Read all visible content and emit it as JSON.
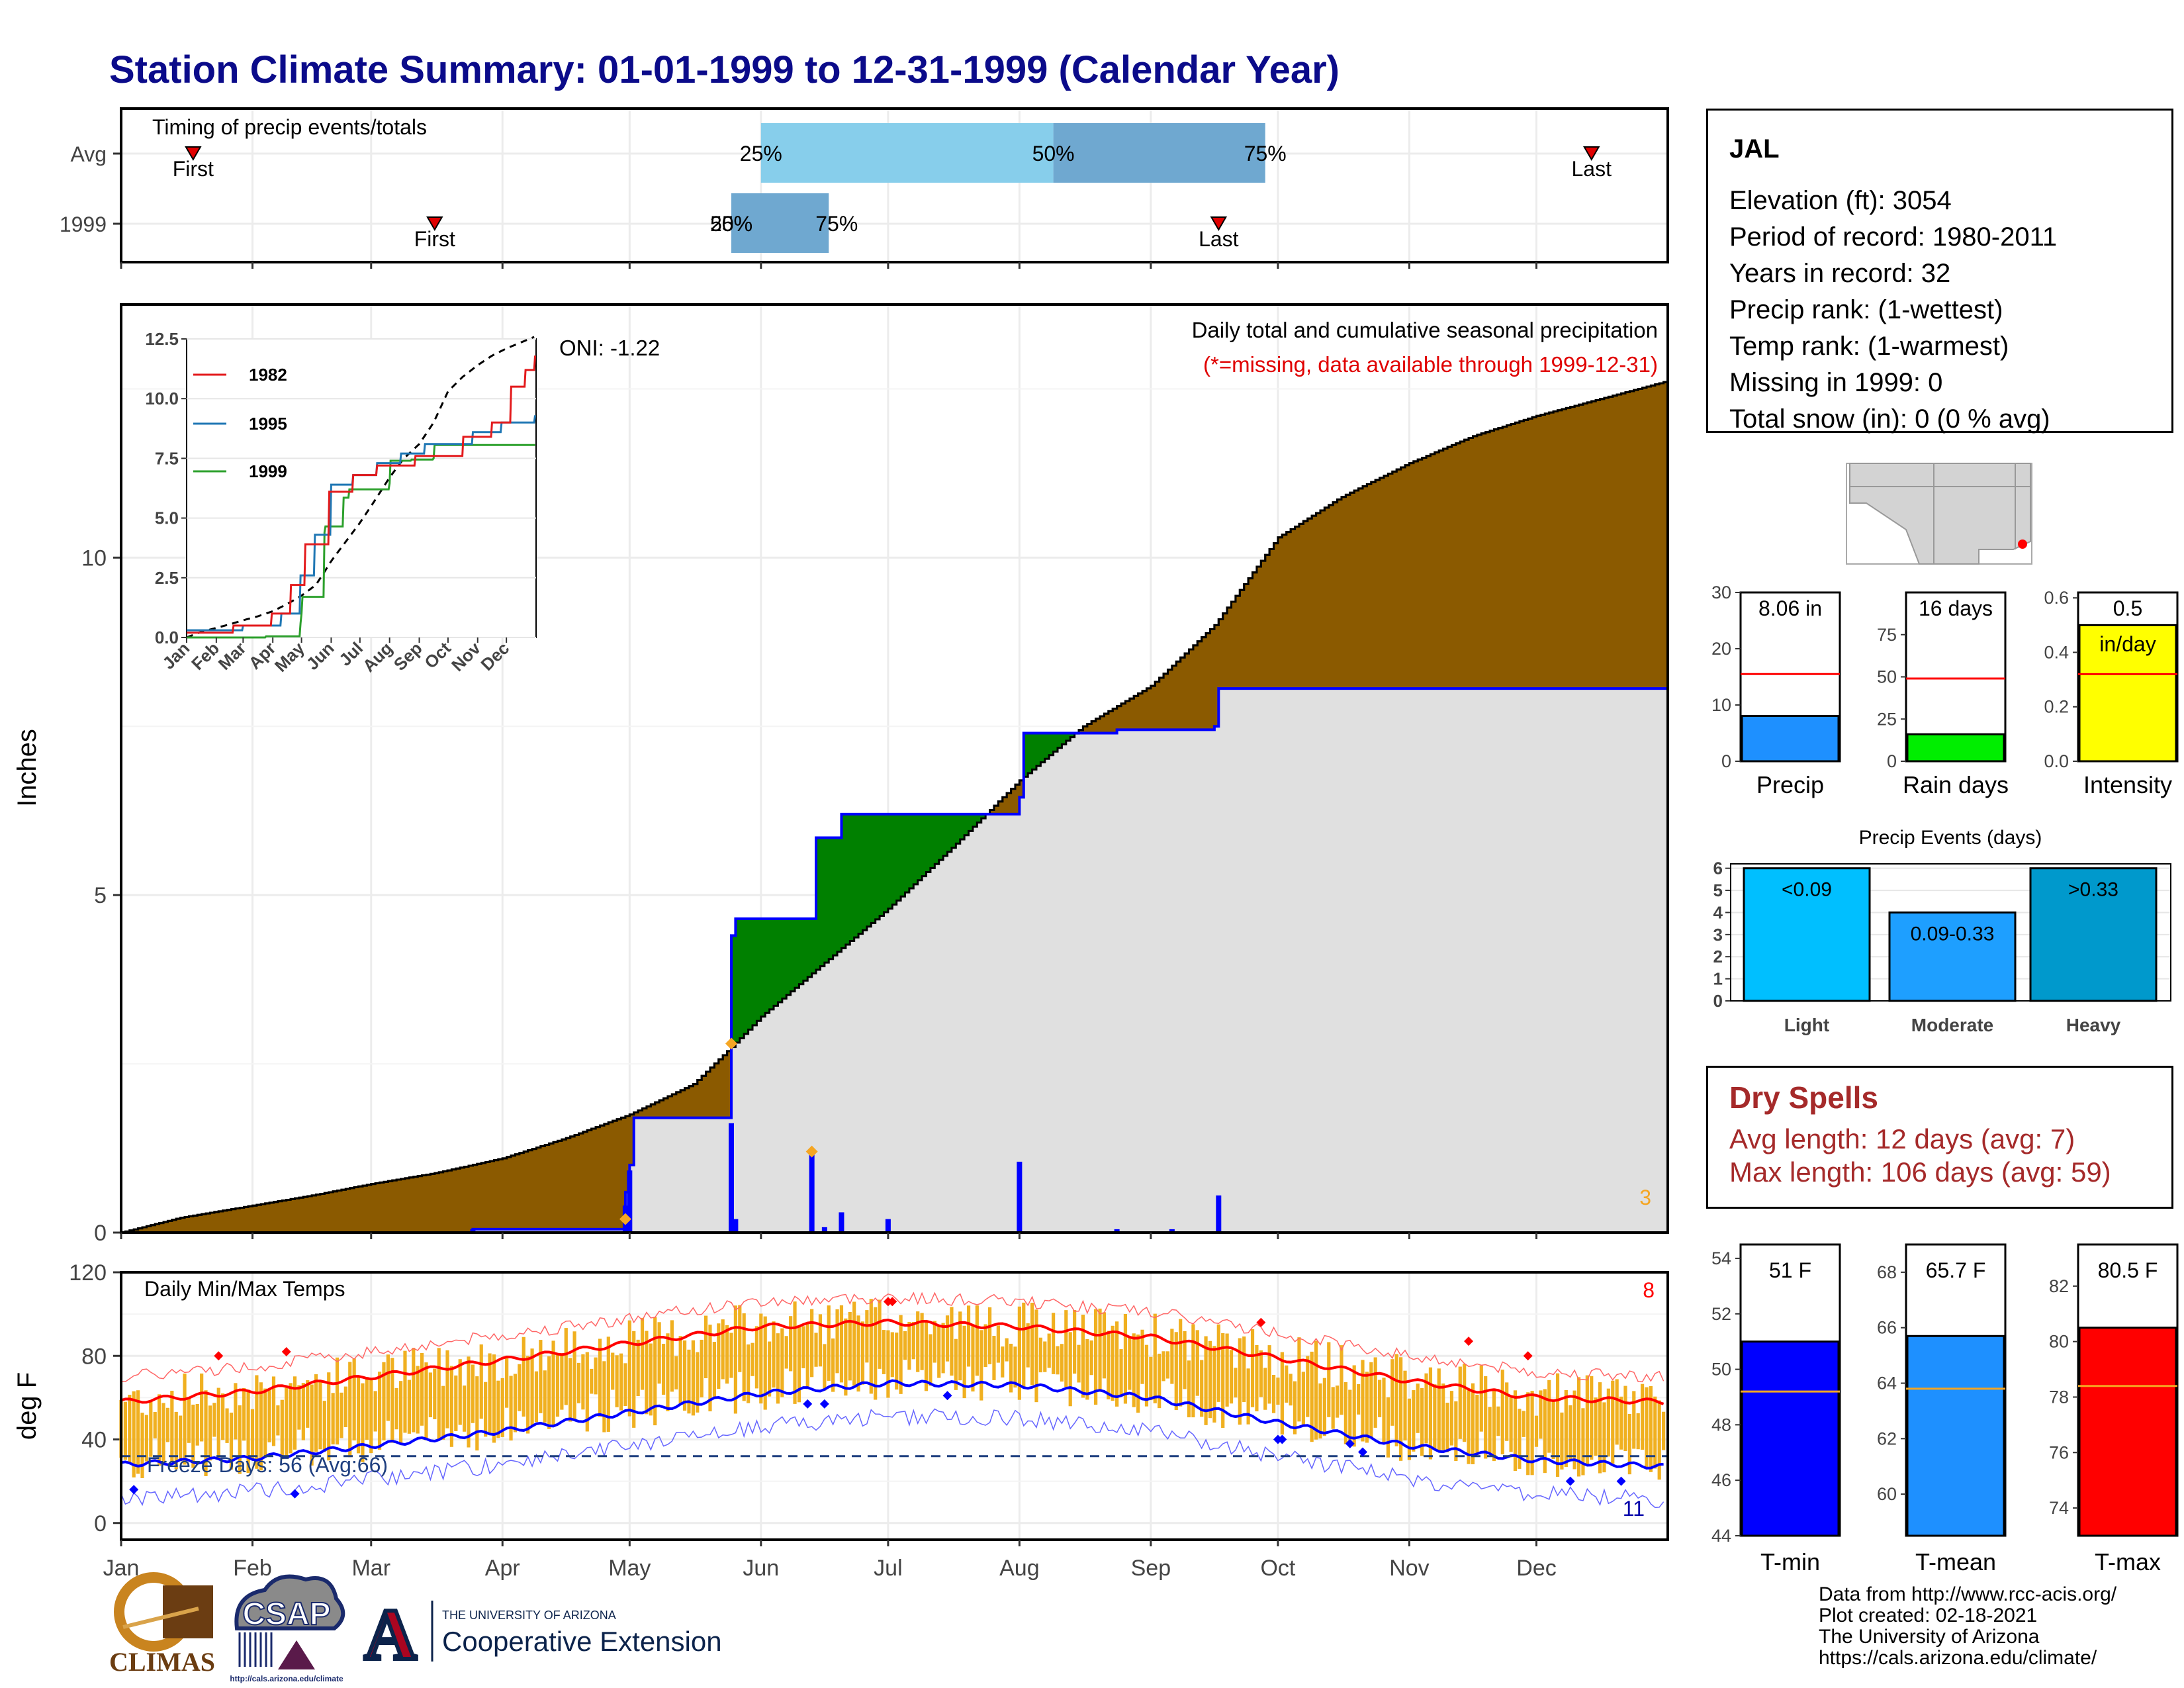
{
  "title": "Station Climate Summary: 01-01-1999 to 12-31-1999 (Calendar Year)",
  "station": {
    "name": "JAL",
    "lines": [
      "Elevation (ft): 3054",
      "Period of record: 1980-2011",
      "Years in record: 32",
      "Precip rank:  (1-wettest)",
      "Temp rank:  (1-warmest)",
      "Missing in 1999: 0",
      "Total snow (in): 0 (0 % avg)"
    ]
  },
  "dry_spells": {
    "title": "Dry Spells",
    "avg": "Avg length: 12 days (avg: 7)",
    "max": "Max length: 106 days (avg: 59)"
  },
  "footer": {
    "lines": [
      "Data from http://www.rcc-acis.org/",
      "Plot created: 02-18-2021",
      "The University of Arizona",
      "https://cals.arizona.edu/climate/"
    ]
  },
  "logos": {
    "climas": "CLIMAS",
    "csap": "CSAP",
    "csap_url": "http://cals.arizona.edu/climate",
    "ua_small": "THE UNIVERSITY OF ARIZONA",
    "ua_big": "Cooperative Extension",
    "ua_letter": "A"
  },
  "months": [
    "Jan",
    "Feb",
    "Mar",
    "Apr",
    "May",
    "Jun",
    "Jul",
    "Aug",
    "Sep",
    "Oct",
    "Nov",
    "Dec"
  ],
  "colors": {
    "cum_fill": "#8b5a00",
    "green_fill": "#008000",
    "gray_fill": "#e0e0e0",
    "blue": "#0000ff",
    "orange_bar": "#f0b020",
    "avg_max": "#ff0000",
    "avg_min": "#0000ff",
    "light_blue": "#87ceeb",
    "mid_blue": "#6fa8d0"
  },
  "chart_data": [
    {
      "id": "timing",
      "type": "bar",
      "title": "Timing of precip events/totals",
      "rows": [
        "Avg",
        "1999"
      ],
      "avg": {
        "first": "01-18",
        "last": "12-14",
        "p25": "06-01",
        "p50": "08-09",
        "p75": "09-28",
        "labels": [
          "First",
          "25%",
          "50%",
          "75%",
          "Last"
        ]
      },
      "y1999": {
        "first": "03-16",
        "last": "09-17",
        "p25": "05-25",
        "p50": "05-25",
        "p75": "06-17",
        "labels": [
          "First",
          "25%",
          "50%",
          "75%",
          "Last"
        ]
      }
    },
    {
      "id": "precip",
      "type": "area",
      "ylabel": "Inches",
      "yticks": [
        0,
        5,
        10
      ],
      "ylim": [
        0,
        13.75
      ],
      "annotation_title": "Daily total and cumulative seasonal precipitation",
      "annotation_missing": "(*=missing, data available through 1999-12-31)",
      "oni": "ONI: -1.22",
      "count_label": "3",
      "avg_cumulative": {
        "day": [
          1,
          15,
          32,
          46,
          60,
          75,
          91,
          106,
          121,
          136,
          145,
          152,
          167,
          182,
          197,
          213,
          228,
          244,
          259,
          274,
          289,
          305,
          320,
          335,
          350,
          365
        ],
        "value": [
          0,
          0.22,
          0.4,
          0.55,
          0.72,
          0.88,
          1.1,
          1.4,
          1.75,
          2.2,
          2.75,
          3.2,
          4.0,
          4.8,
          5.7,
          6.7,
          7.5,
          8.1,
          9.0,
          10.3,
          10.9,
          11.4,
          11.8,
          12.1,
          12.35,
          12.6
        ]
      },
      "cumulative_1999": {
        "day": [
          1,
          84,
          120,
          121,
          122,
          144,
          145,
          146,
          164,
          165,
          170,
          171,
          192,
          213,
          214,
          235,
          236,
          259,
          260,
          365
        ],
        "value": [
          0,
          0.05,
          0.6,
          1.0,
          1.7,
          1.7,
          4.4,
          4.65,
          4.65,
          5.85,
          5.85,
          6.2,
          6.2,
          6.45,
          7.4,
          7.4,
          7.45,
          7.5,
          8.06,
          8.06
        ]
      },
      "daily_1999": {
        "day": [
          84,
          120,
          121,
          145,
          146,
          164,
          167,
          171,
          182,
          213,
          236,
          249,
          260
        ],
        "value": [
          0.05,
          0.4,
          0.92,
          1.62,
          0.2,
          1.2,
          0.08,
          0.3,
          0.2,
          1.05,
          0.05,
          0.05,
          0.55
        ]
      },
      "missing_marks": {
        "day": [
          120,
          145,
          164
        ],
        "value": [
          0.2,
          2.8,
          1.2
        ]
      }
    },
    {
      "id": "temps",
      "type": "line",
      "title": "Daily Min/Max Temps",
      "ylabel": "deg F",
      "yticks": [
        0,
        40,
        80,
        120
      ],
      "ylim": [
        -8,
        120
      ],
      "freeze_label": "Freeze Days: 56 (Avg:66)",
      "freeze_line": 32,
      "record_high_count": "8",
      "record_low_count": "11",
      "avg_max": {
        "day": [
          1,
          32,
          60,
          91,
          121,
          152,
          182,
          213,
          244,
          274,
          305,
          335,
          365
        ],
        "value": [
          58,
          63,
          70,
          78,
          86,
          94,
          96,
          94,
          89,
          79,
          68,
          60,
          58
        ]
      },
      "avg_min": {
        "day": [
          1,
          32,
          60,
          91,
          121,
          152,
          182,
          213,
          244,
          274,
          305,
          335,
          365
        ],
        "value": [
          28,
          31,
          37,
          44,
          53,
          62,
          67,
          66,
          60,
          48,
          37,
          30,
          27
        ]
      },
      "record_highs": {
        "day": [
          24,
          40,
          182,
          183,
          270,
          319,
          333
        ],
        "value": [
          80,
          82,
          106,
          106,
          96,
          87,
          80
        ]
      },
      "record_lows": {
        "day": [
          4,
          42,
          163,
          167,
          196,
          274,
          275,
          291,
          294,
          343,
          355
        ],
        "value": [
          16,
          14,
          57,
          57,
          61,
          40,
          40,
          38,
          34,
          20,
          20
        ]
      }
    },
    {
      "id": "precip_mini",
      "type": "bar",
      "bars": [
        {
          "label": "Precip",
          "value": 8.06,
          "avg": 15.5,
          "ymax": 30,
          "yticks": [
            0,
            10,
            20,
            30
          ],
          "text": "8.06 in",
          "color": "#1e90ff"
        },
        {
          "label": "Rain days",
          "value": 16,
          "avg": 49,
          "ymax": 100,
          "yticks": [
            0,
            25,
            50,
            75
          ],
          "text": "16 days",
          "color": "#00ee00"
        },
        {
          "label": "Intensity",
          "value": 0.5,
          "avg": 0.32,
          "ymax": 0.62,
          "yticks": [
            0.0,
            0.2,
            0.4,
            0.6
          ],
          "text": "0.5",
          "text2": "in/day",
          "color": "#ffff00"
        }
      ]
    },
    {
      "id": "precip_events",
      "type": "bar",
      "title": "Precip Events (days)",
      "categories": [
        "Light",
        "Moderate",
        "Heavy"
      ],
      "values": [
        6,
        4,
        6
      ],
      "bar_labels": [
        "<0.09",
        "0.09-0.33",
        ">0.33"
      ],
      "colors": [
        "#00bfff",
        "#1e9fff",
        "#0099cc"
      ],
      "yticks": [
        0,
        1,
        2,
        3,
        4,
        5,
        6
      ],
      "ylim": [
        0,
        6.2
      ]
    },
    {
      "id": "temp_mini",
      "type": "bar",
      "bars": [
        {
          "label": "T-min",
          "value": 51,
          "avg": 49.2,
          "ymin": 44,
          "ymax": 54.5,
          "yticks": [
            44,
            46,
            48,
            50,
            52,
            54
          ],
          "text": "51 F",
          "color": "#0000ff"
        },
        {
          "label": "T-mean",
          "value": 65.7,
          "avg": 63.8,
          "ymin": 58.5,
          "ymax": 69,
          "yticks": [
            60,
            62,
            64,
            66,
            68
          ],
          "text": "65.7 F",
          "color": "#1e90ff"
        },
        {
          "label": "T-max",
          "value": 80.5,
          "avg": 78.4,
          "ymin": 73,
          "ymax": 83.5,
          "yticks": [
            74,
            76,
            78,
            80,
            82
          ],
          "text": "80.5 F",
          "color": "#ff0000"
        }
      ]
    }
  ]
}
